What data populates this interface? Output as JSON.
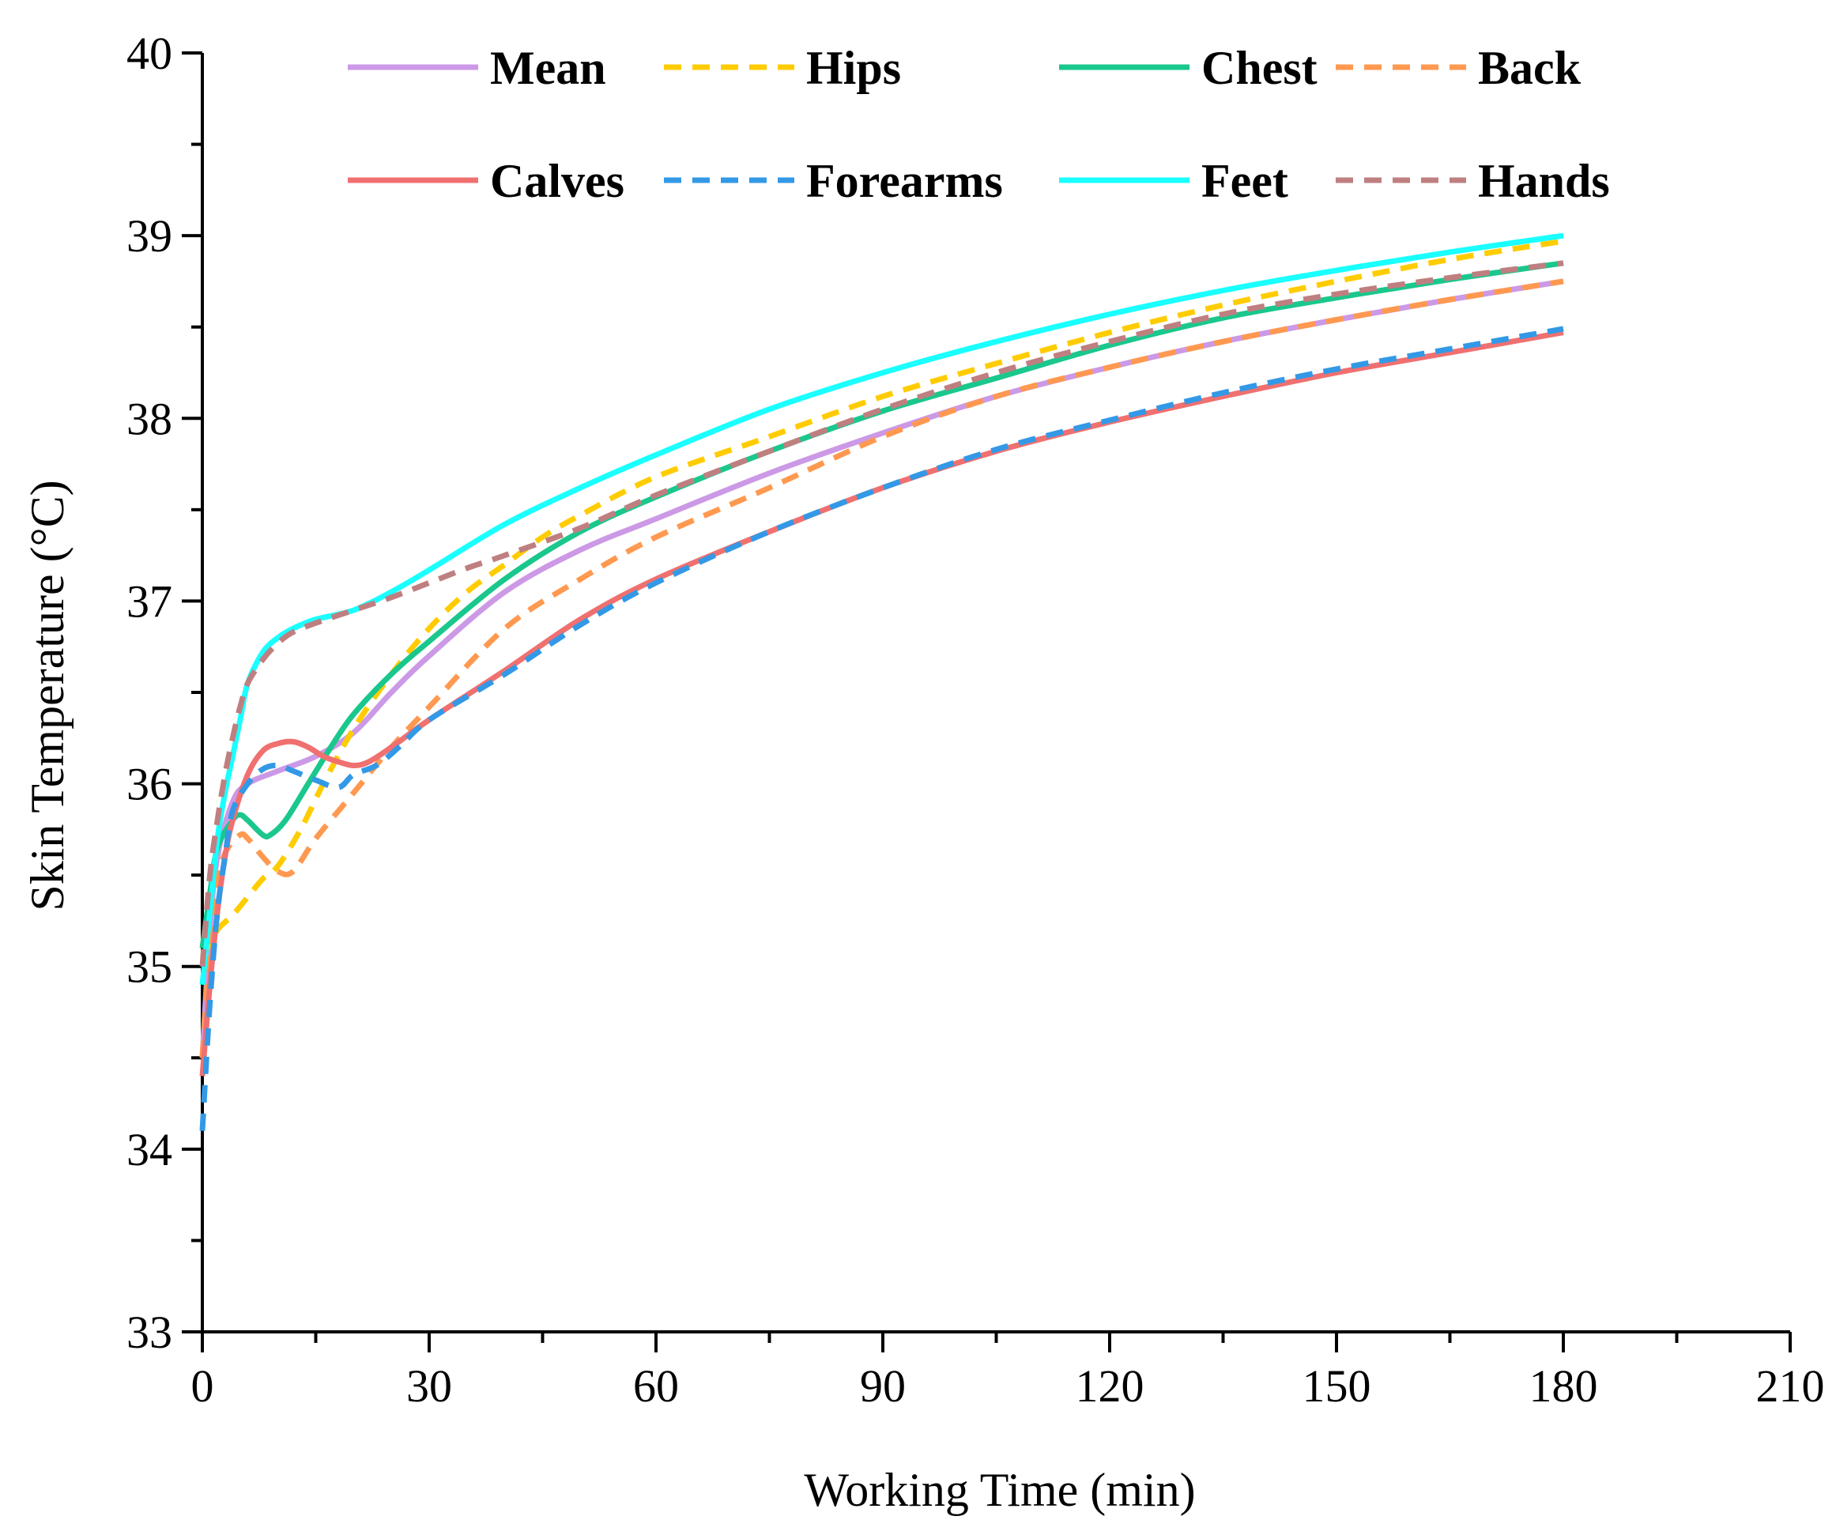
{
  "chart_data": {
    "type": "line",
    "title": "",
    "xlabel": "Working Time (min)",
    "ylabel": "Skin Temperature (°C)",
    "xlim": [
      0,
      210
    ],
    "ylim": [
      33,
      40
    ],
    "xticks": [
      0,
      30,
      60,
      90,
      120,
      150,
      180,
      210
    ],
    "yticks": [
      33,
      34,
      35,
      36,
      37,
      38,
      39,
      40
    ],
    "legend_position": "top",
    "grid": false,
    "series": [
      {
        "name": "Mean",
        "color": "#CC99E6",
        "dash": false,
        "points": [
          [
            0,
            34.5
          ],
          [
            1,
            35.2
          ],
          [
            2,
            35.6
          ],
          [
            4,
            35.9
          ],
          [
            6,
            36.0
          ],
          [
            10,
            36.07
          ],
          [
            15,
            36.15
          ],
          [
            20,
            36.28
          ],
          [
            25,
            36.5
          ],
          [
            30,
            36.7
          ],
          [
            40,
            37.05
          ],
          [
            50,
            37.28
          ],
          [
            60,
            37.45
          ],
          [
            75,
            37.7
          ],
          [
            90,
            37.92
          ],
          [
            105,
            38.12
          ],
          [
            120,
            38.28
          ],
          [
            135,
            38.42
          ],
          [
            150,
            38.54
          ],
          [
            165,
            38.65
          ],
          [
            180,
            38.75
          ]
        ]
      },
      {
        "name": "Hips",
        "color": "#FFCC00",
        "dash": true,
        "points": [
          [
            0,
            35.05
          ],
          [
            2,
            35.2
          ],
          [
            4,
            35.28
          ],
          [
            6,
            35.38
          ],
          [
            8,
            35.48
          ],
          [
            10,
            35.55
          ],
          [
            13,
            35.75
          ],
          [
            16,
            36.0
          ],
          [
            20,
            36.3
          ],
          [
            25,
            36.6
          ],
          [
            30,
            36.85
          ],
          [
            35,
            37.05
          ],
          [
            40,
            37.2
          ],
          [
            45,
            37.35
          ],
          [
            50,
            37.47
          ],
          [
            60,
            37.68
          ],
          [
            75,
            37.9
          ],
          [
            90,
            38.12
          ],
          [
            105,
            38.3
          ],
          [
            120,
            38.47
          ],
          [
            135,
            38.62
          ],
          [
            150,
            38.75
          ],
          [
            165,
            38.87
          ],
          [
            180,
            38.97
          ]
        ]
      },
      {
        "name": "Chest",
        "color": "#1AC78C",
        "dash": false,
        "points": [
          [
            0,
            35.1
          ],
          [
            1,
            35.4
          ],
          [
            2,
            35.65
          ],
          [
            4,
            35.8
          ],
          [
            5,
            35.83
          ],
          [
            6,
            35.8
          ],
          [
            8,
            35.72
          ],
          [
            9,
            35.72
          ],
          [
            11,
            35.8
          ],
          [
            14,
            36.0
          ],
          [
            17,
            36.2
          ],
          [
            20,
            36.38
          ],
          [
            25,
            36.6
          ],
          [
            30,
            36.78
          ],
          [
            40,
            37.12
          ],
          [
            50,
            37.38
          ],
          [
            60,
            37.57
          ],
          [
            75,
            37.82
          ],
          [
            90,
            38.04
          ],
          [
            105,
            38.22
          ],
          [
            120,
            38.4
          ],
          [
            135,
            38.55
          ],
          [
            150,
            38.66
          ],
          [
            165,
            38.76
          ],
          [
            180,
            38.85
          ]
        ]
      },
      {
        "name": "Back",
        "color": "#FF9950",
        "dash": true,
        "points": [
          [
            0,
            34.5
          ],
          [
            1,
            35.1
          ],
          [
            2,
            35.45
          ],
          [
            3,
            35.62
          ],
          [
            5,
            35.72
          ],
          [
            6,
            35.7
          ],
          [
            8,
            35.6
          ],
          [
            10,
            35.52
          ],
          [
            12,
            35.52
          ],
          [
            15,
            35.7
          ],
          [
            20,
            35.95
          ],
          [
            25,
            36.2
          ],
          [
            30,
            36.42
          ],
          [
            40,
            36.85
          ],
          [
            50,
            37.12
          ],
          [
            60,
            37.35
          ],
          [
            75,
            37.62
          ],
          [
            90,
            37.9
          ],
          [
            105,
            38.12
          ],
          [
            120,
            38.28
          ],
          [
            135,
            38.42
          ],
          [
            150,
            38.54
          ],
          [
            165,
            38.65
          ],
          [
            180,
            38.75
          ]
        ]
      },
      {
        "name": "Calves",
        "color": "#F07070",
        "dash": false,
        "points": [
          [
            0,
            34.4
          ],
          [
            1,
            34.9
          ],
          [
            2,
            35.3
          ],
          [
            3,
            35.6
          ],
          [
            4,
            35.8
          ],
          [
            6,
            36.05
          ],
          [
            8,
            36.18
          ],
          [
            10,
            36.22
          ],
          [
            12,
            36.23
          ],
          [
            14,
            36.2
          ],
          [
            16,
            36.15
          ],
          [
            18,
            36.12
          ],
          [
            20,
            36.1
          ],
          [
            22,
            36.12
          ],
          [
            25,
            36.2
          ],
          [
            30,
            36.35
          ],
          [
            40,
            36.62
          ],
          [
            50,
            36.9
          ],
          [
            60,
            37.12
          ],
          [
            75,
            37.38
          ],
          [
            90,
            37.62
          ],
          [
            105,
            37.82
          ],
          [
            120,
            37.98
          ],
          [
            135,
            38.12
          ],
          [
            150,
            38.25
          ],
          [
            165,
            38.36
          ],
          [
            180,
            38.47
          ]
        ]
      },
      {
        "name": "Forearms",
        "color": "#3399E6",
        "dash": true,
        "points": [
          [
            0,
            34.1
          ],
          [
            1,
            34.8
          ],
          [
            2,
            35.3
          ],
          [
            3,
            35.6
          ],
          [
            4,
            35.85
          ],
          [
            6,
            36.0
          ],
          [
            8,
            36.08
          ],
          [
            10,
            36.1
          ],
          [
            12,
            36.07
          ],
          [
            15,
            36.02
          ],
          [
            18,
            35.98
          ],
          [
            20,
            36.05
          ],
          [
            23,
            36.1
          ],
          [
            26,
            36.2
          ],
          [
            30,
            36.35
          ],
          [
            40,
            36.6
          ],
          [
            50,
            36.87
          ],
          [
            60,
            37.1
          ],
          [
            75,
            37.38
          ],
          [
            90,
            37.62
          ],
          [
            105,
            37.83
          ],
          [
            120,
            37.99
          ],
          [
            135,
            38.14
          ],
          [
            150,
            38.27
          ],
          [
            165,
            38.38
          ],
          [
            180,
            38.49
          ]
        ]
      },
      {
        "name": "Feet",
        "color": "#1AFFFF",
        "dash": false,
        "points": [
          [
            0,
            34.9
          ],
          [
            1,
            35.3
          ],
          [
            2,
            35.7
          ],
          [
            3,
            35.95
          ],
          [
            4,
            36.15
          ],
          [
            5,
            36.35
          ],
          [
            6,
            36.55
          ],
          [
            8,
            36.72
          ],
          [
            10,
            36.8
          ],
          [
            12,
            36.85
          ],
          [
            15,
            36.9
          ],
          [
            20,
            36.95
          ],
          [
            25,
            37.05
          ],
          [
            30,
            37.17
          ],
          [
            40,
            37.42
          ],
          [
            50,
            37.62
          ],
          [
            60,
            37.8
          ],
          [
            75,
            38.05
          ],
          [
            90,
            38.25
          ],
          [
            105,
            38.42
          ],
          [
            120,
            38.57
          ],
          [
            135,
            38.7
          ],
          [
            150,
            38.81
          ],
          [
            165,
            38.91
          ],
          [
            180,
            39.0
          ]
        ]
      },
      {
        "name": "Hands",
        "color": "#BF7F80",
        "dash": true,
        "points": [
          [
            0,
            35.0
          ],
          [
            1,
            35.5
          ],
          [
            2,
            35.8
          ],
          [
            3,
            36.05
          ],
          [
            4,
            36.25
          ],
          [
            5,
            36.42
          ],
          [
            6,
            36.55
          ],
          [
            8,
            36.68
          ],
          [
            10,
            36.77
          ],
          [
            12,
            36.83
          ],
          [
            15,
            36.88
          ],
          [
            20,
            36.95
          ],
          [
            25,
            37.02
          ],
          [
            30,
            37.1
          ],
          [
            35,
            37.18
          ],
          [
            40,
            37.25
          ],
          [
            50,
            37.4
          ],
          [
            60,
            37.58
          ],
          [
            75,
            37.82
          ],
          [
            90,
            38.05
          ],
          [
            105,
            38.25
          ],
          [
            120,
            38.42
          ],
          [
            135,
            38.57
          ],
          [
            150,
            38.68
          ],
          [
            165,
            38.77
          ],
          [
            180,
            38.85
          ]
        ]
      }
    ]
  }
}
